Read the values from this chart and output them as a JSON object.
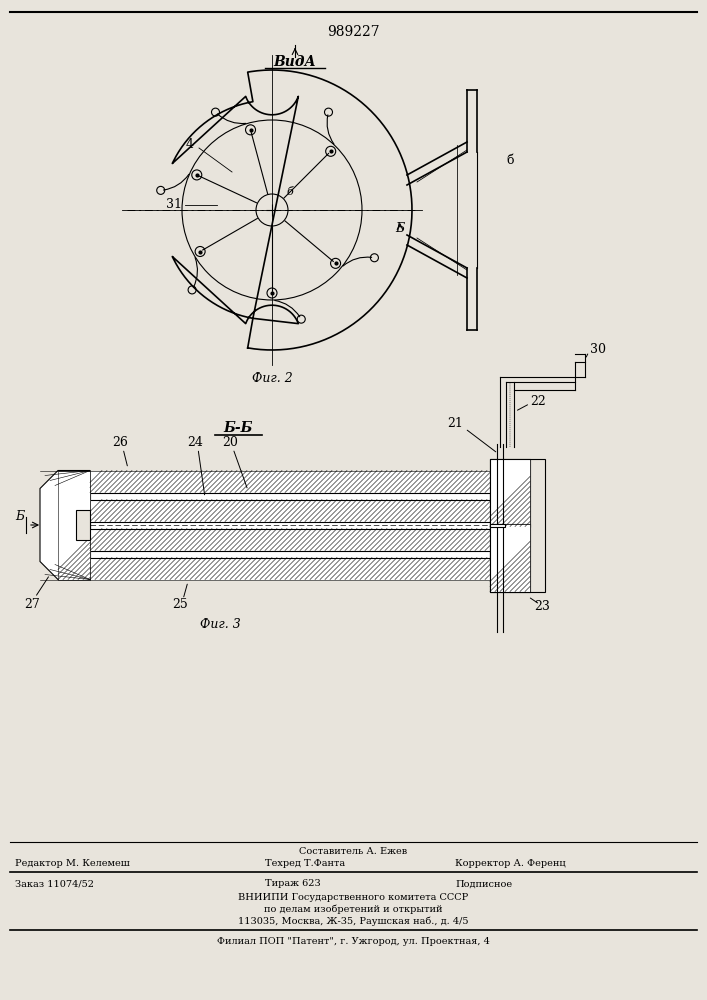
{
  "patent_number": "989227",
  "view_a_label": "ВидА",
  "section_bb_label": "Б-Б",
  "fig2_label": "Фиг. 2",
  "fig3_label": "Фиг. 3",
  "footer_line1": "Составитель А. Ежев",
  "footer_line2_a": "Редактор М. Келемеш",
  "footer_line2_b": "Техред Т.Фанта",
  "footer_line2_c": "Корректор А. Ференц",
  "footer_line3_a": "Заказ 11074/52",
  "footer_line3_b": "Тираж 623",
  "footer_line3_c": "Подписное",
  "footer_line4": "ВНИИПИ Государственного комитета СССР",
  "footer_line5": "по делам изобретений и открытий",
  "footer_line6": "113035, Москва, Ж-35, Раушская наб., д. 4/5",
  "footer_line7": "Филиал ПОП \"Патент\", г. Ужгород, ул. Проектная, 4",
  "bg_color": "#e8e4dc",
  "lbl_4": "4",
  "lbl_5": "б",
  "lbl_6": "б",
  "lbl_31": "31",
  "lbl_B": "Б",
  "lbl_B2": "Б",
  "lbl_20": "20",
  "lbl_21": "21",
  "lbl_22": "22",
  "lbl_23": "23",
  "lbl_24": "24",
  "lbl_25": "25",
  "lbl_26": "26",
  "lbl_27": "27",
  "lbl_30": "30"
}
